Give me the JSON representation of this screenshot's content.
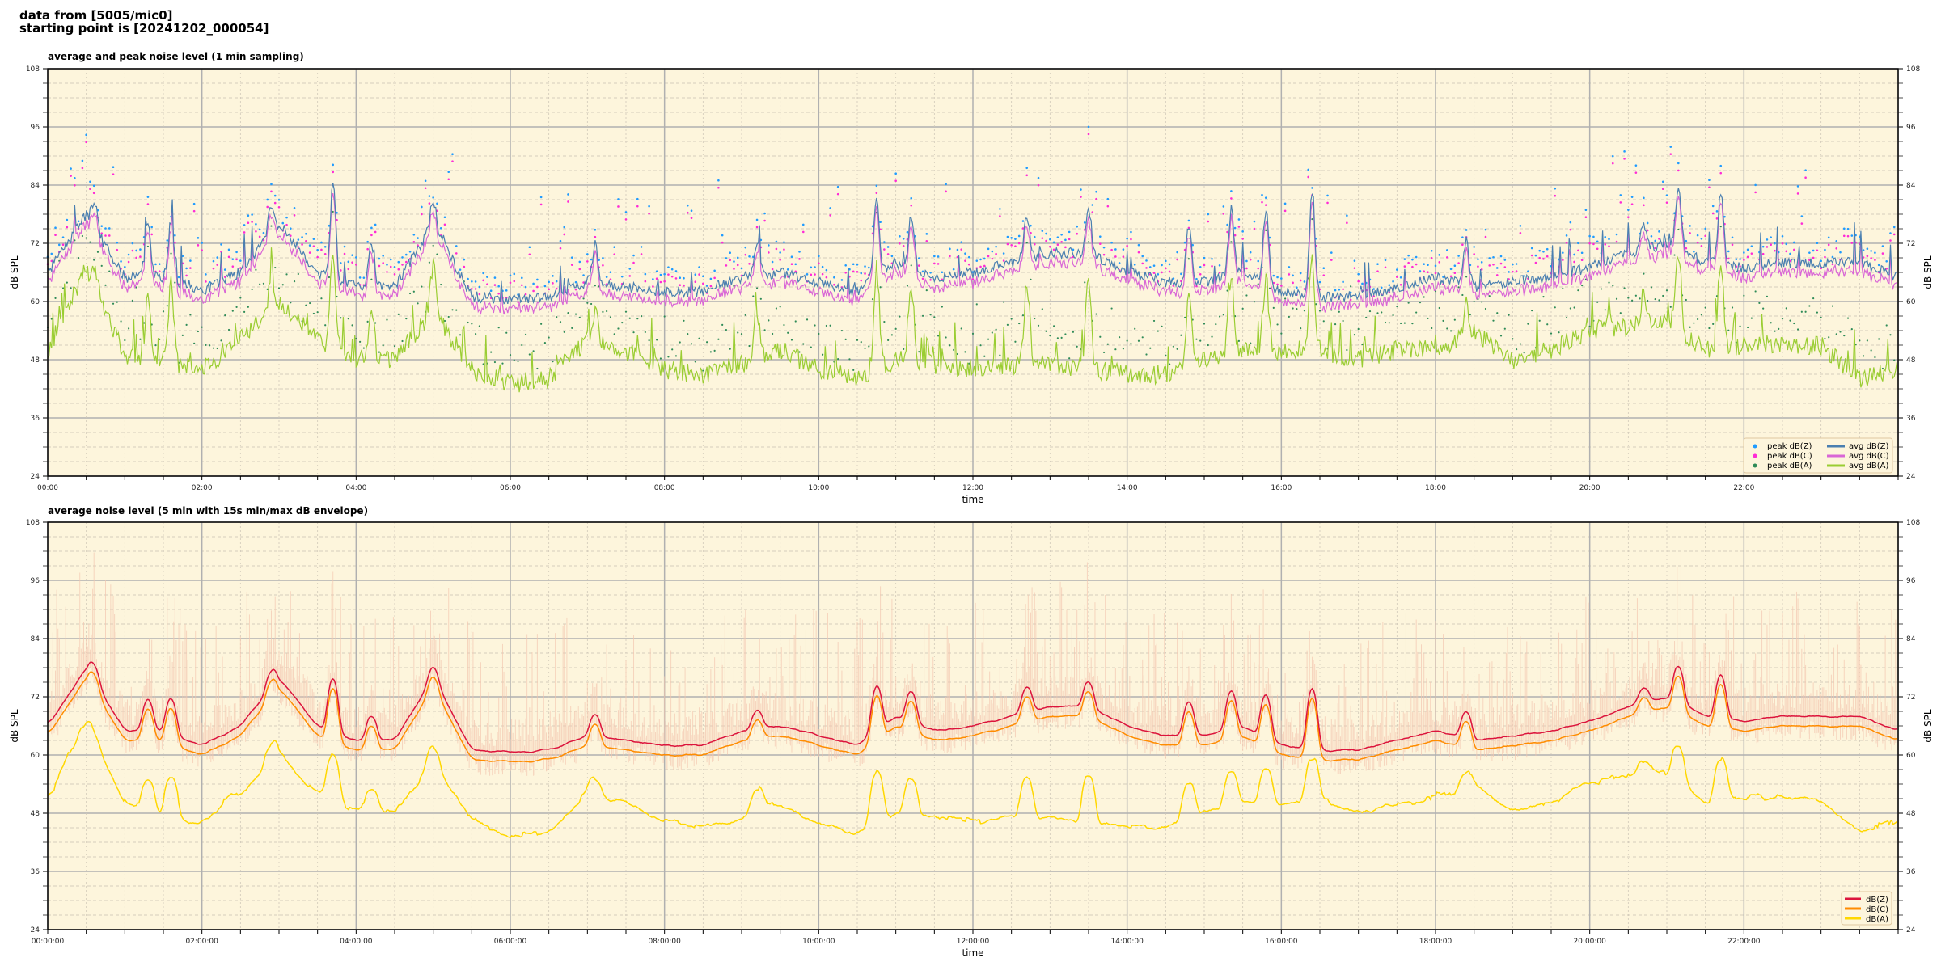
{
  "header": {
    "line1": "data from [5005/mic0]",
    "line2": "starting point is [20241202_000054]"
  },
  "colors": {
    "bg": "#fdf5dc",
    "peak_z": "#1f9bff",
    "peak_c": "#ff2bd6",
    "peak_a": "#2e8b57",
    "avg_z": "#4a7fb0",
    "avg_c": "#d966d6",
    "avg_a": "#9acd32",
    "z": "#dc143c",
    "c": "#ff8c00",
    "a": "#ffd700",
    "envelope": "#f4c7b0"
  },
  "chart_data": [
    {
      "type": "line",
      "title": "average and peak noise level (1 min sampling)",
      "xlabel": "time",
      "ylabel": "dB SPL",
      "xlim_hours": [
        0,
        24
      ],
      "ylim": [
        24,
        108
      ],
      "yticks": [
        24,
        36,
        48,
        60,
        72,
        84,
        96,
        108
      ],
      "xtick_labels": [
        "00:00",
        "02:00",
        "04:00",
        "06:00",
        "08:00",
        "10:00",
        "12:00",
        "14:00",
        "16:00",
        "18:00",
        "20:00",
        "22:00"
      ],
      "grid": true,
      "legend_placement": "bottom-right",
      "legend": [
        "peak dB(Z)",
        "peak dB(C)",
        "peak dB(A)",
        "avg dB(Z)",
        "avg dB(C)",
        "avg dB(A)"
      ],
      "x_step_minutes": 30,
      "avg_z": [
        66,
        78,
        65,
        65,
        62,
        66,
        76,
        66,
        63,
        63,
        76,
        61,
        60.5,
        61,
        64,
        63,
        62,
        62,
        65,
        66,
        64,
        62,
        68,
        65,
        66,
        68,
        70,
        70,
        66,
        64,
        64,
        66,
        62,
        61,
        61,
        63,
        65,
        63,
        64,
        65,
        67,
        70,
        72,
        68,
        67,
        68,
        68,
        68,
        65
      ],
      "avg_a": [
        50,
        67,
        49,
        47,
        46,
        52,
        60,
        52,
        48,
        48,
        58,
        46,
        43,
        44,
        52,
        50,
        46,
        45,
        47,
        50,
        46,
        44,
        48,
        47,
        46,
        47,
        47,
        46,
        45,
        45,
        48,
        50,
        50,
        50,
        48,
        50,
        50,
        54,
        48,
        50,
        54,
        55,
        56,
        50,
        51,
        51,
        51,
        44,
        46
      ],
      "c_offset": -1.5,
      "spikes_z": [
        [
          0.6,
          81
        ],
        [
          1.3,
          76
        ],
        [
          1.6,
          77
        ],
        [
          2.9,
          80
        ],
        [
          3.7,
          84
        ],
        [
          4.2,
          72
        ],
        [
          5.0,
          81
        ],
        [
          7.1,
          72
        ],
        [
          9.2,
          72
        ],
        [
          10.75,
          81
        ],
        [
          11.2,
          78
        ],
        [
          12.7,
          78
        ],
        [
          13.5,
          79
        ],
        [
          14.8,
          76
        ],
        [
          15.35,
          79
        ],
        [
          15.8,
          79
        ],
        [
          16.4,
          83
        ],
        [
          18.4,
          73
        ],
        [
          20.7,
          76
        ],
        [
          21.15,
          84
        ],
        [
          21.7,
          83
        ]
      ]
    },
    {
      "type": "line",
      "title": "average noise level (5 min with 15s min/max dB envelope)",
      "xlabel": "time",
      "ylabel": "dB SPL",
      "xlim_hours": [
        0,
        24
      ],
      "ylim": [
        24,
        108
      ],
      "yticks": [
        24,
        36,
        48,
        60,
        72,
        84,
        96,
        108
      ],
      "xtick_labels": [
        "00:00:00",
        "02:00:00",
        "04:00:00",
        "06:00:00",
        "08:00:00",
        "10:00:00",
        "12:00:00",
        "14:00:00",
        "16:00:00",
        "18:00:00",
        "20:00:00",
        "22:00:00"
      ],
      "grid": true,
      "legend_placement": "bottom-right",
      "legend": [
        "dB(Z)",
        "dB(C)",
        "dB(A)"
      ]
    }
  ]
}
